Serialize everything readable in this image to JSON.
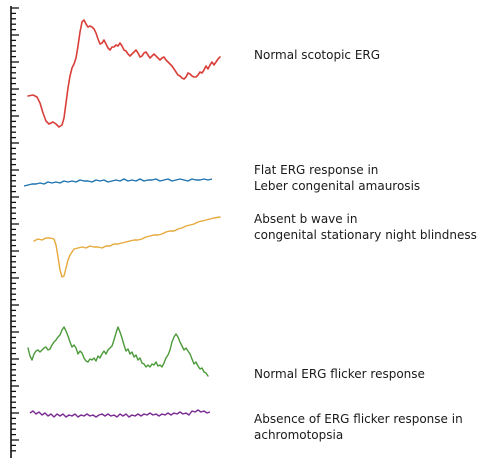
{
  "figure": {
    "traces": [
      {
        "id": "normal-scotopic",
        "color": "#d9403a",
        "lines": [
          "Normal scotopic ERG"
        ]
      },
      {
        "id": "flat-lca",
        "color": "#1f73b0",
        "lines": [
          "Flat ERG response in",
          "Leber congenital amaurosis"
        ]
      },
      {
        "id": "absent-b-wave",
        "color": "#e6a83a",
        "lines": [
          "Absent b wave in",
          "congenital stationary night blindness"
        ]
      },
      {
        "id": "normal-flicker",
        "color": "#4c9a3a",
        "lines": [
          "Normal ERG flicker response"
        ]
      },
      {
        "id": "absent-flicker",
        "color": "#7a2b92",
        "lines": [
          "Absence of ERG flicker response in",
          "achromotopsia"
        ]
      }
    ],
    "axis_color": "#111111"
  }
}
